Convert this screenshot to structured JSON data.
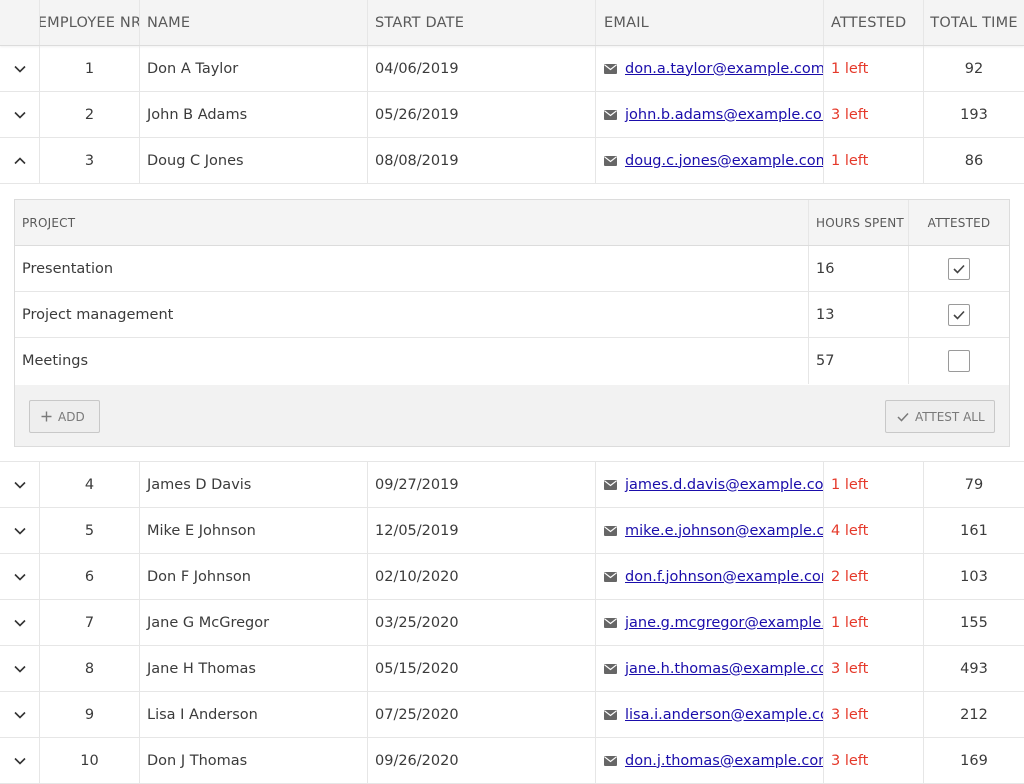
{
  "columns": {
    "employee_nr": "EMPLOYEE NR",
    "name": "NAME",
    "start_date": "START DATE",
    "email": "EMAIL",
    "attested": "ATTESTED",
    "total_time": "TOTAL TIME"
  },
  "rows": [
    {
      "nr": "1",
      "name": "Don A Taylor",
      "date": "04/06/2019",
      "email": "don.a.taylor@example.com",
      "attested": "1 left",
      "total": "92"
    },
    {
      "nr": "2",
      "name": "John B Adams",
      "date": "05/26/2019",
      "email": "john.b.adams@example.com",
      "attested": "3 left",
      "total": "193"
    },
    {
      "nr": "3",
      "name": "Doug C Jones",
      "date": "08/08/2019",
      "email": "doug.c.jones@example.com",
      "attested": "1 left",
      "total": "86"
    },
    {
      "nr": "4",
      "name": "James D Davis",
      "date": "09/27/2019",
      "email": "james.d.davis@example.com",
      "attested": "1 left",
      "total": "79"
    },
    {
      "nr": "5",
      "name": "Mike E Johnson",
      "date": "12/05/2019",
      "email": "mike.e.johnson@example.com",
      "attested": "4 left",
      "total": "161"
    },
    {
      "nr": "6",
      "name": "Don F Johnson",
      "date": "02/10/2020",
      "email": "don.f.johnson@example.com",
      "attested": "2 left",
      "total": "103"
    },
    {
      "nr": "7",
      "name": "Jane G McGregor",
      "date": "03/25/2020",
      "email": "jane.g.mcgregor@example.com",
      "attested": "1 left",
      "total": "155"
    },
    {
      "nr": "8",
      "name": "Jane H Thomas",
      "date": "05/15/2020",
      "email": "jane.h.thomas@example.com",
      "attested": "3 left",
      "total": "493"
    },
    {
      "nr": "9",
      "name": "Lisa I Anderson",
      "date": "07/25/2020",
      "email": "lisa.i.anderson@example.com",
      "attested": "3 left",
      "total": "212"
    },
    {
      "nr": "10",
      "name": "Don J Thomas",
      "date": "09/26/2020",
      "email": "don.j.thomas@example.com",
      "attested": "3 left",
      "total": "169"
    }
  ],
  "detail": {
    "columns": {
      "project": "PROJECT",
      "hours": "HOURS SPENT",
      "attested": "ATTESTED"
    },
    "rows": [
      {
        "project": "Presentation",
        "hours": "16",
        "attested": true
      },
      {
        "project": "Project management",
        "hours": "13",
        "attested": true
      },
      {
        "project": "Meetings",
        "hours": "57",
        "attested": false
      }
    ],
    "add_label": "ADD",
    "attest_all_label": "ATTEST ALL"
  },
  "colors": {
    "left_status": "#e5392a",
    "link": "#1a0dab"
  }
}
